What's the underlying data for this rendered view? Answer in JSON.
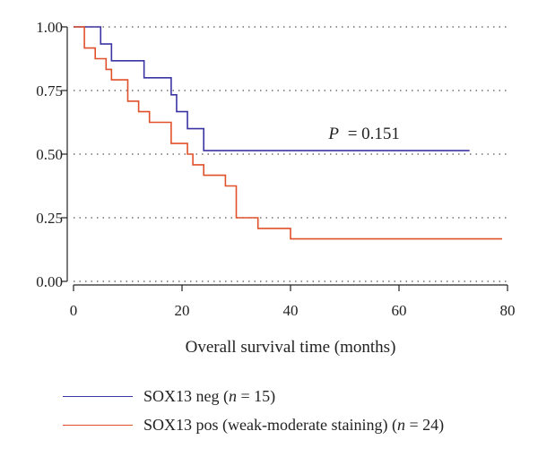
{
  "chart_data": {
    "type": "line",
    "xlabel": "Overall survival time (months)",
    "ylabel": "",
    "xlim": [
      0,
      80
    ],
    "ylim": [
      0,
      1
    ],
    "x_ticks": [
      "0",
      "20",
      "40",
      "60",
      "80"
    ],
    "y_ticks": [
      "0.00",
      "0.25",
      "0.50",
      "0.75",
      "1.00"
    ],
    "grid": "horizontal-dotted",
    "annotation": {
      "p_label": "P",
      "p_value": "= 0.151",
      "x": 47,
      "y": 0.56
    },
    "series": [
      {
        "name": "SOX13 neg",
        "n_label": "n",
        "n_value": "= 15)",
        "color": "#3b34a3",
        "steps": [
          [
            0,
            1.0
          ],
          [
            5,
            0.933
          ],
          [
            7,
            0.867
          ],
          [
            13,
            0.8
          ],
          [
            18,
            0.733
          ],
          [
            19,
            0.667
          ],
          [
            21,
            0.6
          ],
          [
            24,
            0.514
          ],
          [
            73,
            0.514
          ]
        ]
      },
      {
        "name": "SOX13 pos (weak-moderate staining)",
        "n_label": "n",
        "n_value": "= 24)",
        "color": "#e0502a",
        "steps": [
          [
            0,
            1.0
          ],
          [
            2,
            0.917
          ],
          [
            4,
            0.875
          ],
          [
            6,
            0.833
          ],
          [
            7,
            0.792
          ],
          [
            10,
            0.708
          ],
          [
            12,
            0.667
          ],
          [
            14,
            0.625
          ],
          [
            18,
            0.542
          ],
          [
            21,
            0.5
          ],
          [
            22,
            0.458
          ],
          [
            24,
            0.417
          ],
          [
            28,
            0.375
          ],
          [
            30,
            0.25
          ],
          [
            34,
            0.208
          ],
          [
            40,
            0.167
          ],
          [
            79,
            0.167
          ]
        ]
      }
    ]
  }
}
